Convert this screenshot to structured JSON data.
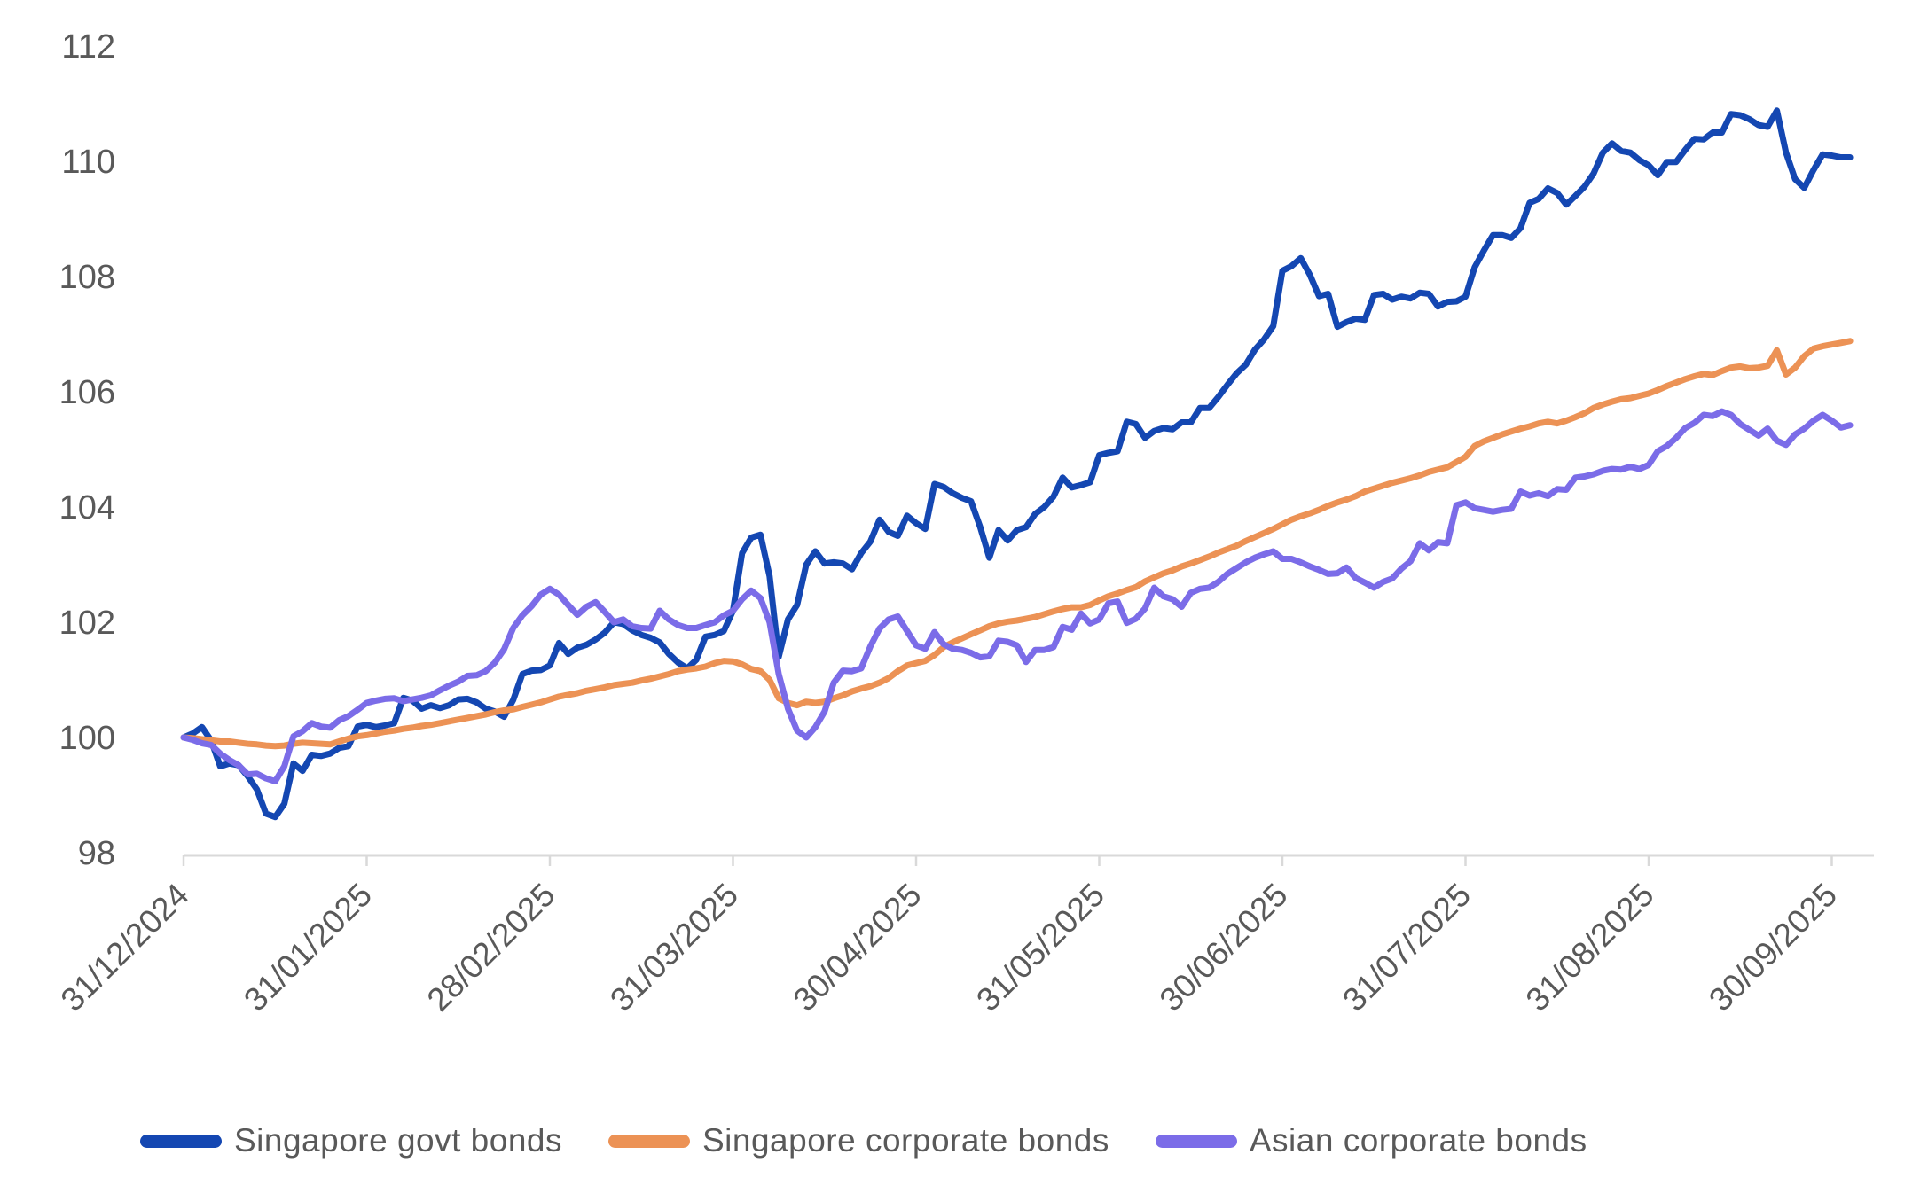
{
  "page": {
    "background": "#ffffff"
  },
  "chart_data": {
    "type": "line",
    "grid": false,
    "legend_position": "bottom",
    "axis_color": "#d9d9d9",
    "tick_label_color": "#595959",
    "x_axis": {
      "unit": "months since 31/12/2024",
      "tick_labels": [
        "31/12/2024",
        "31/01/2025",
        "28/02/2025",
        "31/03/2025",
        "30/04/2025",
        "31/05/2025",
        "30/06/2025",
        "31/07/2025",
        "31/08/2025",
        "30/09/2025"
      ],
      "labels_rotation_deg": -45
    },
    "y_axis": {
      "min": 98,
      "max": 112,
      "tick_step": 2,
      "ticks": [
        112,
        110,
        108,
        106,
        104,
        102,
        100,
        98
      ]
    },
    "x_start": 0,
    "x_step": 0.05,
    "series": [
      {
        "name": "Singapore govt bonds",
        "color": "#1447b2",
        "values": [
          100.0,
          100.07,
          100.18,
          99.95,
          99.5,
          99.55,
          99.52,
          99.33,
          99.1,
          98.68,
          98.62,
          98.85,
          99.55,
          99.42,
          99.7,
          99.68,
          99.72,
          99.82,
          99.85,
          100.19,
          100.22,
          100.18,
          100.21,
          100.25,
          100.69,
          100.64,
          100.5,
          100.56,
          100.51,
          100.56,
          100.66,
          100.67,
          100.61,
          100.5,
          100.45,
          100.36,
          100.65,
          101.1,
          101.16,
          101.17,
          101.25,
          101.64,
          101.45,
          101.56,
          101.61,
          101.7,
          101.82,
          102.0,
          101.97,
          101.86,
          101.78,
          101.73,
          101.65,
          101.45,
          101.3,
          101.2,
          101.35,
          101.75,
          101.78,
          101.85,
          102.2,
          103.2,
          103.47,
          103.52,
          102.8,
          101.4,
          102.05,
          102.3,
          103.0,
          103.23,
          103.02,
          103.04,
          103.02,
          102.92,
          103.2,
          103.4,
          103.78,
          103.57,
          103.5,
          103.85,
          103.72,
          103.62,
          104.4,
          104.35,
          104.24,
          104.16,
          104.1,
          103.65,
          103.12,
          103.6,
          103.42,
          103.6,
          103.65,
          103.88,
          104.0,
          104.18,
          104.51,
          104.34,
          104.38,
          104.43,
          104.9,
          104.94,
          104.97,
          105.48,
          105.44,
          105.2,
          105.32,
          105.37,
          105.35,
          105.47,
          105.47,
          105.72,
          105.72,
          105.91,
          106.12,
          106.32,
          106.47,
          106.73,
          106.91,
          107.14,
          108.1,
          108.18,
          108.32,
          108.03,
          107.66,
          107.7,
          107.13,
          107.21,
          107.27,
          107.25,
          107.68,
          107.7,
          107.6,
          107.65,
          107.62,
          107.72,
          107.7,
          107.48,
          107.56,
          107.57,
          107.65,
          108.16,
          108.45,
          108.72,
          108.72,
          108.67,
          108.84,
          109.28,
          109.35,
          109.53,
          109.45,
          109.25,
          109.4,
          109.56,
          109.79,
          110.15,
          110.31,
          110.18,
          110.15,
          110.02,
          109.93,
          109.76,
          109.99,
          109.99,
          110.2,
          110.39,
          110.38,
          110.5,
          110.5,
          110.82,
          110.8,
          110.73,
          110.63,
          110.6,
          110.88,
          110.15,
          109.69,
          109.54,
          109.85,
          110.12,
          110.1,
          110.07,
          110.07
        ]
      },
      {
        "name": "Singapore corporate bonds",
        "color": "#ec9255",
        "values": [
          100.0,
          99.99,
          99.97,
          99.95,
          99.93,
          99.93,
          99.91,
          99.89,
          99.88,
          99.86,
          99.85,
          99.86,
          99.89,
          99.91,
          99.9,
          99.89,
          99.88,
          99.93,
          99.98,
          100.02,
          100.04,
          100.07,
          100.1,
          100.12,
          100.15,
          100.17,
          100.2,
          100.22,
          100.25,
          100.28,
          100.31,
          100.34,
          100.37,
          100.4,
          100.44,
          100.47,
          100.49,
          100.53,
          100.57,
          100.61,
          100.66,
          100.71,
          100.74,
          100.77,
          100.81,
          100.84,
          100.87,
          100.91,
          100.93,
          100.95,
          100.99,
          101.02,
          101.06,
          101.1,
          101.15,
          101.18,
          101.2,
          101.23,
          101.29,
          101.33,
          101.32,
          101.27,
          101.19,
          101.15,
          101.0,
          100.68,
          100.6,
          100.56,
          100.62,
          100.6,
          100.62,
          100.68,
          100.73,
          100.8,
          100.85,
          100.89,
          100.95,
          101.03,
          101.15,
          101.25,
          101.29,
          101.33,
          101.43,
          101.57,
          101.65,
          101.72,
          101.79,
          101.86,
          101.93,
          101.98,
          102.01,
          102.03,
          102.06,
          102.09,
          102.14,
          102.19,
          102.23,
          102.26,
          102.26,
          102.3,
          102.38,
          102.45,
          102.5,
          102.56,
          102.61,
          102.71,
          102.78,
          102.85,
          102.9,
          102.97,
          103.02,
          103.08,
          103.14,
          103.21,
          103.27,
          103.33,
          103.41,
          103.48,
          103.55,
          103.62,
          103.7,
          103.78,
          103.84,
          103.89,
          103.95,
          104.02,
          104.08,
          104.13,
          104.19,
          104.27,
          104.32,
          104.37,
          104.42,
          104.46,
          104.5,
          104.55,
          104.61,
          104.65,
          104.69,
          104.78,
          104.87,
          105.06,
          105.14,
          105.2,
          105.26,
          105.31,
          105.36,
          105.4,
          105.45,
          105.48,
          105.45,
          105.5,
          105.56,
          105.63,
          105.72,
          105.78,
          105.83,
          105.87,
          105.89,
          105.93,
          105.97,
          106.03,
          106.1,
          106.16,
          106.22,
          106.27,
          106.31,
          106.29,
          106.36,
          106.42,
          106.44,
          106.41,
          106.42,
          106.45,
          106.72,
          106.3,
          106.42,
          106.62,
          106.75,
          106.79,
          106.82,
          106.85,
          106.88
        ]
      },
      {
        "name": "Asian corporate bonds",
        "color": "#7b6ce8",
        "values": [
          100.0,
          99.96,
          99.9,
          99.87,
          99.72,
          99.61,
          99.52,
          99.36,
          99.37,
          99.29,
          99.24,
          99.5,
          100.02,
          100.11,
          100.25,
          100.19,
          100.17,
          100.3,
          100.37,
          100.48,
          100.6,
          100.64,
          100.67,
          100.68,
          100.63,
          100.66,
          100.69,
          100.73,
          100.82,
          100.9,
          100.97,
          101.07,
          101.08,
          101.15,
          101.3,
          101.53,
          101.9,
          102.12,
          102.28,
          102.48,
          102.58,
          102.48,
          102.3,
          102.13,
          102.27,
          102.35,
          102.18,
          102.0,
          102.05,
          101.93,
          101.9,
          101.89,
          102.2,
          102.05,
          101.95,
          101.9,
          101.9,
          101.95,
          102.0,
          102.12,
          102.2,
          102.4,
          102.55,
          102.42,
          102.0,
          101.1,
          100.5,
          100.12,
          100.0,
          100.18,
          100.45,
          100.95,
          101.16,
          101.15,
          101.2,
          101.58,
          101.89,
          102.05,
          102.1,
          101.85,
          101.6,
          101.54,
          101.83,
          101.62,
          101.54,
          101.52,
          101.47,
          101.39,
          101.41,
          101.68,
          101.66,
          101.6,
          101.31,
          101.52,
          101.52,
          101.57,
          101.92,
          101.87,
          102.15,
          101.98,
          102.05,
          102.33,
          102.36,
          101.99,
          102.06,
          102.24,
          102.6,
          102.45,
          102.4,
          102.27,
          102.51,
          102.58,
          102.6,
          102.7,
          102.84,
          102.94,
          103.04,
          103.12,
          103.18,
          103.23,
          103.1,
          103.1,
          103.04,
          102.97,
          102.91,
          102.84,
          102.85,
          102.95,
          102.77,
          102.69,
          102.6,
          102.7,
          102.76,
          102.93,
          103.06,
          103.37,
          103.25,
          103.39,
          103.37,
          104.03,
          104.08,
          103.98,
          103.95,
          103.92,
          103.95,
          103.97,
          104.27,
          104.2,
          104.24,
          104.19,
          104.31,
          104.3,
          104.51,
          104.53,
          104.57,
          104.63,
          104.66,
          104.65,
          104.7,
          104.66,
          104.73,
          104.97,
          105.06,
          105.2,
          105.37,
          105.46,
          105.6,
          105.58,
          105.66,
          105.6,
          105.44,
          105.34,
          105.24,
          105.36,
          105.15,
          105.08,
          105.26,
          105.36,
          105.5,
          105.6,
          105.5,
          105.38,
          105.42
        ]
      }
    ]
  }
}
